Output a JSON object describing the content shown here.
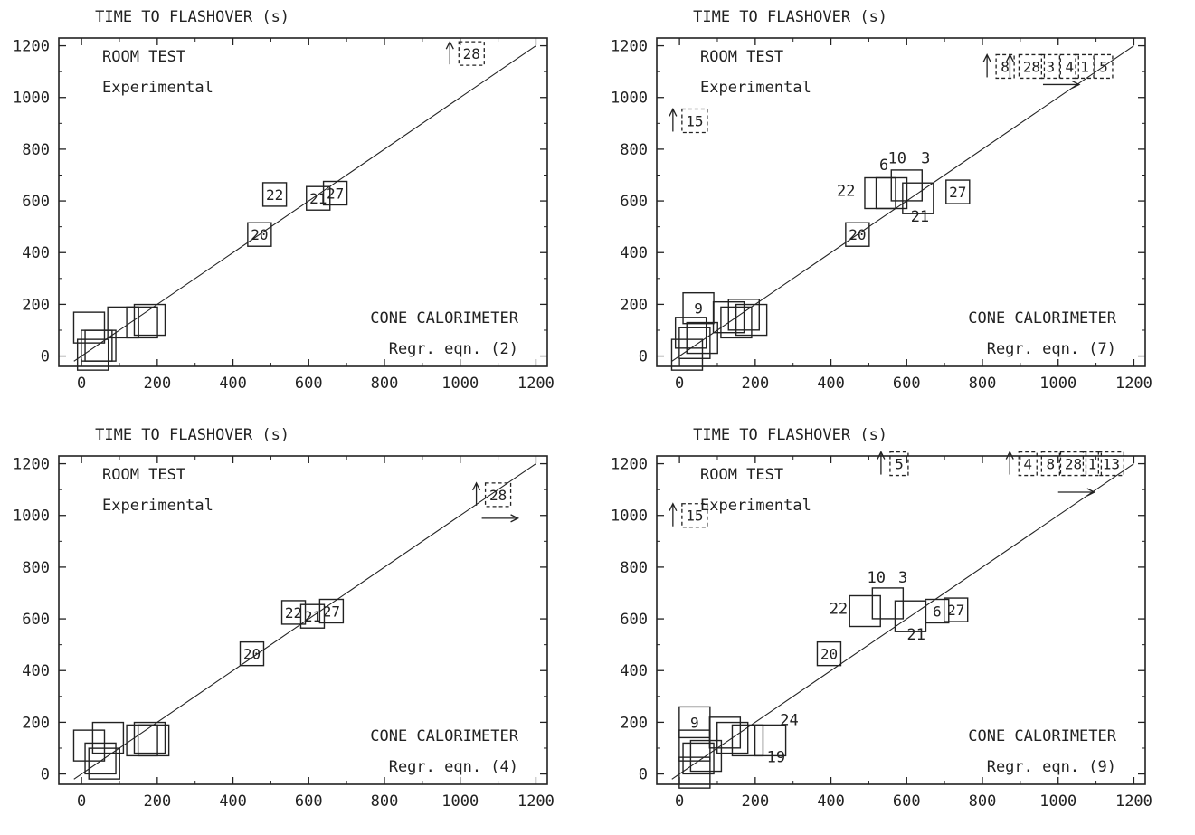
{
  "chart_data": [
    {
      "type": "scatter",
      "title": "TIME TO FLASHOVER (s)",
      "ylabel_top": "ROOM TEST",
      "ylabel_sub": "Experimental",
      "xlabel_top": "CONE CALORIMETER",
      "xlabel_sub": "Regr. eqn. (2)",
      "xlim": [
        -60,
        1230
      ],
      "ylim": [
        -40,
        1230
      ],
      "xticks": [
        0,
        200,
        400,
        600,
        800,
        1000,
        1200
      ],
      "yticks": [
        0,
        200,
        400,
        600,
        800,
        1000,
        1200
      ],
      "line": [
        [
          -20,
          -20
        ],
        [
          1200,
          1200
        ]
      ],
      "points": [
        {
          "x": 20,
          "y": 110,
          "label": "",
          "small": false
        },
        {
          "x": 40,
          "y": 40,
          "label": "",
          "small": false
        },
        {
          "x": 50,
          "y": 40,
          "label": "",
          "small": false
        },
        {
          "x": 30,
          "y": 5,
          "label": "",
          "small": false
        },
        {
          "x": 110,
          "y": 130,
          "label": "",
          "small": false
        },
        {
          "x": 160,
          "y": 130,
          "label": "",
          "small": false
        },
        {
          "x": 180,
          "y": 140,
          "label": "",
          "small": false
        },
        {
          "x": 510,
          "y": 625,
          "label": "22",
          "small": true
        },
        {
          "x": 470,
          "y": 470,
          "label": "20",
          "small": true
        },
        {
          "x": 625,
          "y": 610,
          "label": "21",
          "small": true
        },
        {
          "x": 670,
          "y": 630,
          "label": "27",
          "small": true
        }
      ],
      "offscale": [
        {
          "x": 1030,
          "y": 1170,
          "label": "28",
          "up": true,
          "right": false
        }
      ]
    },
    {
      "type": "scatter",
      "title": "TIME TO FLASHOVER (s)",
      "ylabel_top": "ROOM TEST",
      "ylabel_sub": "Experimental",
      "xlabel_top": "CONE CALORIMETER",
      "xlabel_sub": "Regr. eqn. (7)",
      "xlim": [
        -60,
        1230
      ],
      "ylim": [
        -40,
        1230
      ],
      "xticks": [
        0,
        200,
        400,
        600,
        800,
        1000,
        1200
      ],
      "yticks": [
        0,
        200,
        400,
        600,
        800,
        1000,
        1200
      ],
      "line": [
        [
          -20,
          -20
        ],
        [
          1200,
          1200
        ]
      ],
      "points": [
        {
          "x": 30,
          "y": 90,
          "label": "",
          "small": false
        },
        {
          "x": 40,
          "y": 50,
          "label": "",
          "small": false
        },
        {
          "x": 60,
          "y": 70,
          "label": "",
          "small": false
        },
        {
          "x": 20,
          "y": 5,
          "label": "",
          "small": false
        },
        {
          "x": 50,
          "y": 185,
          "label": "9",
          "small": false
        },
        {
          "x": 130,
          "y": 150,
          "label": "",
          "small": false
        },
        {
          "x": 150,
          "y": 130,
          "label": "",
          "small": false
        },
        {
          "x": 170,
          "y": 160,
          "label": "",
          "small": false
        },
        {
          "x": 190,
          "y": 140,
          "label": "",
          "small": false
        },
        {
          "x": 530,
          "y": 630,
          "label": "",
          "small": false
        },
        {
          "x": 560,
          "y": 630,
          "label": "",
          "small": false
        },
        {
          "x": 600,
          "y": 660,
          "label": "",
          "small": false
        },
        {
          "x": 630,
          "y": 610,
          "label": "",
          "small": false
        },
        {
          "x": 470,
          "y": 470,
          "label": "20",
          "small": true
        },
        {
          "x": 735,
          "y": 635,
          "label": "27",
          "small": true
        }
      ],
      "annotations": [
        {
          "text": "22",
          "x": 440,
          "y": 620
        },
        {
          "text": "6",
          "x": 540,
          "y": 720
        },
        {
          "text": "10",
          "x": 575,
          "y": 745
        },
        {
          "text": "3",
          "x": 650,
          "y": 745
        },
        {
          "text": "21",
          "x": 635,
          "y": 520
        }
      ],
      "offscale": [
        {
          "x": 40,
          "y": 910,
          "label": "15",
          "up": true,
          "right": false
        },
        {
          "x": 860,
          "y": 1120,
          "label": "8",
          "up": true,
          "right": false
        },
        {
          "x": 930,
          "y": 1120,
          "label": "28",
          "up": true,
          "right": false
        },
        {
          "x": 980,
          "y": 1120,
          "label": "3",
          "up": false,
          "right": false
        },
        {
          "x": 1030,
          "y": 1120,
          "label": "4",
          "up": false,
          "right": false
        },
        {
          "x": 1070,
          "y": 1120,
          "label": "1",
          "up": false,
          "right": false
        },
        {
          "x": 1120,
          "y": 1120,
          "label": "5",
          "up": false,
          "right": false
        }
      ],
      "right_arrows": [
        {
          "x": 960,
          "y": 1050
        }
      ]
    },
    {
      "type": "scatter",
      "title": "TIME TO FLASHOVER (s)",
      "ylabel_top": "ROOM TEST",
      "ylabel_sub": "Experimental",
      "xlabel_top": "CONE CALORIMETER",
      "xlabel_sub": "Regr. eqn. (4)",
      "xlim": [
        -60,
        1230
      ],
      "ylim": [
        -40,
        1230
      ],
      "xticks": [
        0,
        200,
        400,
        600,
        800,
        1000,
        1200
      ],
      "yticks": [
        0,
        200,
        400,
        600,
        800,
        1000,
        1200
      ],
      "line": [
        [
          -20,
          -20
        ],
        [
          1200,
          1200
        ]
      ],
      "points": [
        {
          "x": 20,
          "y": 110,
          "label": "",
          "small": false
        },
        {
          "x": 50,
          "y": 60,
          "label": "",
          "small": false
        },
        {
          "x": 70,
          "y": 140,
          "label": "",
          "small": false
        },
        {
          "x": 60,
          "y": 40,
          "label": "",
          "small": false
        },
        {
          "x": 160,
          "y": 130,
          "label": "",
          "small": false
        },
        {
          "x": 180,
          "y": 140,
          "label": "",
          "small": false
        },
        {
          "x": 190,
          "y": 130,
          "label": "",
          "small": false
        },
        {
          "x": 560,
          "y": 625,
          "label": "22",
          "small": true
        },
        {
          "x": 450,
          "y": 465,
          "label": "20",
          "small": true
        },
        {
          "x": 610,
          "y": 610,
          "label": "21",
          "small": true
        },
        {
          "x": 660,
          "y": 630,
          "label": "27",
          "small": true
        }
      ],
      "offscale": [
        {
          "x": 1100,
          "y": 1080,
          "label": "28",
          "up": true,
          "right": true
        }
      ]
    },
    {
      "type": "scatter",
      "title": "TIME TO FLASHOVER (s)",
      "ylabel_top": "ROOM TEST",
      "ylabel_sub": "Experimental",
      "xlabel_top": "CONE CALORIMETER",
      "xlabel_sub": "Regr. eqn. (9)",
      "xlim": [
        -60,
        1230
      ],
      "ylim": [
        -40,
        1230
      ],
      "xticks": [
        0,
        200,
        400,
        600,
        800,
        1000,
        1200
      ],
      "yticks": [
        0,
        200,
        400,
        600,
        800,
        1000,
        1200
      ],
      "line": [
        [
          -20,
          -20
        ],
        [
          1200,
          1200
        ]
      ],
      "points": [
        {
          "x": 40,
          "y": 200,
          "label": "9",
          "small": false
        },
        {
          "x": 40,
          "y": 110,
          "label": "",
          "small": false
        },
        {
          "x": 50,
          "y": 60,
          "label": "",
          "small": false
        },
        {
          "x": 70,
          "y": 70,
          "label": "",
          "small": false
        },
        {
          "x": 40,
          "y": 5,
          "label": "",
          "small": false
        },
        {
          "x": 120,
          "y": 160,
          "label": "",
          "small": false
        },
        {
          "x": 140,
          "y": 140,
          "label": "",
          "small": false
        },
        {
          "x": 180,
          "y": 130,
          "label": "",
          "small": false
        },
        {
          "x": 240,
          "y": 130,
          "label": "",
          "small": false
        },
        {
          "x": 490,
          "y": 630,
          "label": "",
          "small": false
        },
        {
          "x": 550,
          "y": 660,
          "label": "",
          "small": false
        },
        {
          "x": 610,
          "y": 610,
          "label": "",
          "small": false
        },
        {
          "x": 395,
          "y": 465,
          "label": "20",
          "small": true
        },
        {
          "x": 680,
          "y": 630,
          "label": "6",
          "small": true
        },
        {
          "x": 730,
          "y": 635,
          "label": "27",
          "small": true
        }
      ],
      "annotations": [
        {
          "text": "22",
          "x": 420,
          "y": 620
        },
        {
          "text": "10",
          "x": 520,
          "y": 740
        },
        {
          "text": "3",
          "x": 590,
          "y": 740
        },
        {
          "text": "21",
          "x": 625,
          "y": 520
        },
        {
          "text": "24",
          "x": 290,
          "y": 190
        },
        {
          "text": "19",
          "x": 255,
          "y": 45
        }
      ],
      "offscale": [
        {
          "x": 40,
          "y": 1000,
          "label": "15",
          "up": true,
          "right": false
        },
        {
          "x": 580,
          "y": 1200,
          "label": "5",
          "up": true,
          "right": false
        },
        {
          "x": 920,
          "y": 1200,
          "label": "4",
          "up": true,
          "right": false
        },
        {
          "x": 980,
          "y": 1200,
          "label": "8",
          "up": false,
          "right": false
        },
        {
          "x": 1040,
          "y": 1200,
          "label": "28",
          "up": false,
          "right": false
        },
        {
          "x": 1090,
          "y": 1200,
          "label": "1",
          "up": false,
          "right": false
        },
        {
          "x": 1140,
          "y": 1200,
          "label": "13",
          "up": false,
          "right": false
        }
      ],
      "right_arrows": [
        {
          "x": 1000,
          "y": 1090
        }
      ]
    }
  ]
}
